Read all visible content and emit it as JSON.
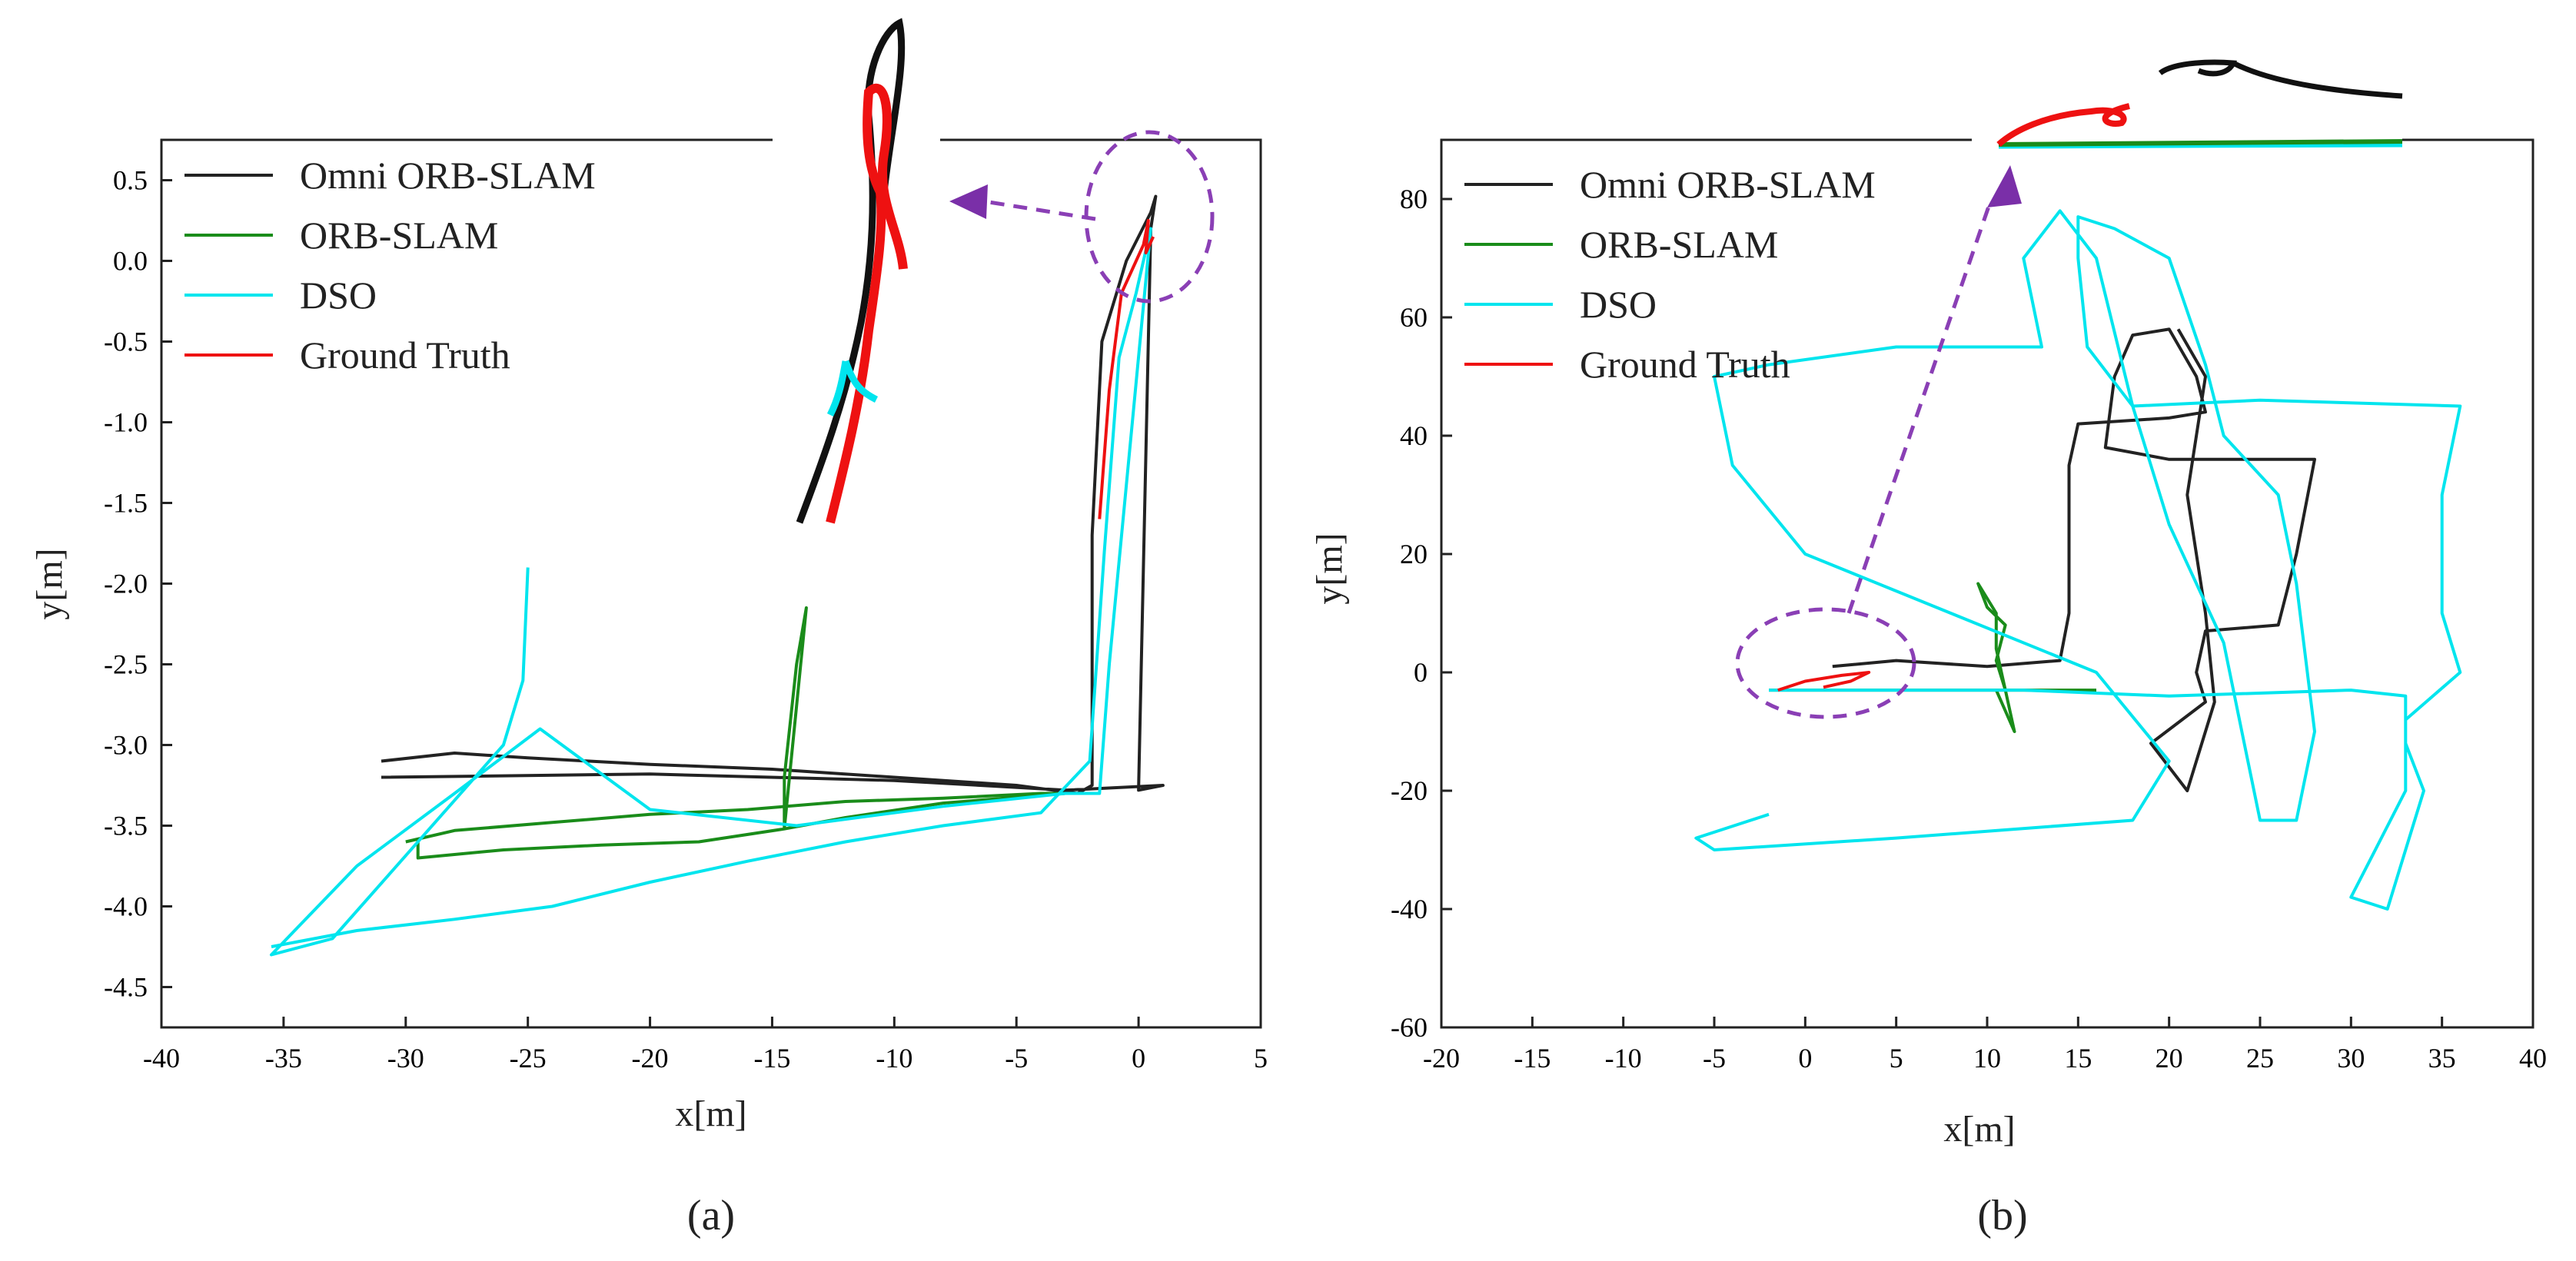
{
  "chart_data": [
    {
      "panel": "a",
      "type": "line",
      "caption": "(a)",
      "xlabel": "x[m]",
      "ylabel": "y[m]",
      "xlim": [
        -40,
        5
      ],
      "ylim": [
        -4.75,
        0.75
      ],
      "xticks": [
        "-40",
        "-35",
        "-30",
        "-25",
        "-20",
        "-15",
        "-10",
        "-5",
        "0",
        "5"
      ],
      "yticks": [
        "0.5",
        "0.0",
        "-0.5",
        "-1.0",
        "-1.5",
        "-2.0",
        "-2.5",
        "-3.0",
        "-3.5",
        "-4.0",
        "-4.5"
      ],
      "legend": [
        "Omni ORB-SLAM",
        "ORB-SLAM",
        "DSO",
        "Ground Truth"
      ],
      "series": [
        {
          "name": "Omni ORB-SLAM",
          "color": "#222222",
          "points": [
            [
              -31,
              -3.1
            ],
            [
              -28,
              -3.05
            ],
            [
              -25,
              -3.08
            ],
            [
              -20,
              -3.12
            ],
            [
              -15,
              -3.15
            ],
            [
              -10,
              -3.2
            ],
            [
              -5,
              -3.25
            ],
            [
              -2.5,
              -3.3
            ],
            [
              -1.9,
              -3.25
            ],
            [
              -1.9,
              -1.7
            ],
            [
              -1.5,
              -0.5
            ],
            [
              -0.5,
              0.0
            ],
            [
              0.5,
              0.3
            ],
            [
              0.7,
              0.4
            ],
            [
              0.5,
              0.2
            ],
            [
              0.0,
              -3.28
            ],
            [
              1,
              -3.25
            ],
            [
              -3,
              -3.28
            ],
            [
              -10,
              -3.22
            ],
            [
              -20,
              -3.18
            ],
            [
              -31,
              -3.2
            ]
          ]
        },
        {
          "name": "ORB-SLAM",
          "color": "#1a8c1a",
          "points": [
            [
              -30,
              -3.6
            ],
            [
              -28,
              -3.53
            ],
            [
              -24,
              -3.48
            ],
            [
              -20,
              -3.43
            ],
            [
              -16,
              -3.4
            ],
            [
              -12,
              -3.35
            ],
            [
              -8,
              -3.33
            ],
            [
              -4,
              -3.3
            ],
            [
              -3,
              -3.3
            ],
            [
              -8,
              -3.36
            ],
            [
              -12,
              -3.45
            ],
            [
              -14.5,
              -3.52
            ],
            [
              -14.5,
              -3.2
            ],
            [
              -14,
              -2.5
            ],
            [
              -13.6,
              -2.15
            ],
            [
              -14.5,
              -3.52
            ],
            [
              -18,
              -3.6
            ],
            [
              -22,
              -3.62
            ],
            [
              -26,
              -3.65
            ],
            [
              -29.5,
              -3.7
            ],
            [
              -29.5,
              -3.58
            ]
          ]
        },
        {
          "name": "DSO",
          "color": "#00e5ee",
          "points": [
            [
              -35.5,
              -4.25
            ],
            [
              -32,
              -4.15
            ],
            [
              -28,
              -4.08
            ],
            [
              -24,
              -4.0
            ],
            [
              -20,
              -3.85
            ],
            [
              -16,
              -3.72
            ],
            [
              -12,
              -3.6
            ],
            [
              -8,
              -3.5
            ],
            [
              -4,
              -3.42
            ],
            [
              -2,
              -3.1
            ],
            [
              -1.4,
              -1.8
            ],
            [
              -0.8,
              -0.6
            ],
            [
              -0.1,
              -0.2
            ],
            [
              0.5,
              0.2
            ],
            [
              -1.2,
              -2.5
            ],
            [
              -1.6,
              -3.3
            ],
            [
              -3,
              -3.3
            ],
            [
              -8,
              -3.38
            ],
            [
              -14,
              -3.5
            ],
            [
              -20,
              -3.4
            ],
            [
              -24.5,
              -2.9
            ],
            [
              -28,
              -3.3
            ],
            [
              -32,
              -3.75
            ],
            [
              -35.5,
              -4.3
            ],
            [
              -33,
              -4.2
            ],
            [
              -26,
              -3.0
            ],
            [
              -25.2,
              -2.6
            ],
            [
              -25.0,
              -1.9
            ]
          ]
        },
        {
          "name": "Ground Truth",
          "color": "#ee1111",
          "points": [
            [
              -1.6,
              -1.6
            ],
            [
              -1.2,
              -0.8
            ],
            [
              -0.7,
              -0.2
            ],
            [
              0.2,
              0.1
            ],
            [
              0.4,
              0.25
            ],
            [
              0.3,
              0.05
            ],
            [
              0.6,
              0.15
            ]
          ]
        }
      ]
    },
    {
      "panel": "b",
      "type": "line",
      "caption": "(b)",
      "xlabel": "x[m]",
      "ylabel": "y[m]",
      "xlim": [
        -20,
        40
      ],
      "ylim": [
        -60,
        90
      ],
      "xticks": [
        "-20",
        "-15",
        "-10",
        "-5",
        "0",
        "5",
        "10",
        "15",
        "20",
        "25",
        "30",
        "35",
        "40"
      ],
      "yticks": [
        "80",
        "60",
        "40",
        "20",
        "0",
        "-20",
        "-40",
        "-60"
      ],
      "legend": [
        "Omni ORB-SLAM",
        "ORB-SLAM",
        "DSO",
        "Ground Truth"
      ],
      "series": [
        {
          "name": "Omni ORB-SLAM",
          "color": "#222222",
          "points": [
            [
              1.5,
              1
            ],
            [
              5,
              2
            ],
            [
              10,
              1
            ],
            [
              14,
              2
            ],
            [
              14.5,
              10
            ],
            [
              14.5,
              35
            ],
            [
              15,
              42
            ],
            [
              20,
              43
            ],
            [
              22,
              44
            ],
            [
              21.5,
              50
            ],
            [
              20,
              58
            ],
            [
              18,
              57
            ],
            [
              17,
              50
            ],
            [
              16.5,
              38
            ],
            [
              20,
              36
            ],
            [
              28,
              36
            ],
            [
              27,
              20
            ],
            [
              26,
              8
            ],
            [
              22,
              7
            ],
            [
              21.5,
              0
            ],
            [
              22,
              -5
            ],
            [
              19,
              -12
            ],
            [
              21,
              -20
            ],
            [
              22.5,
              -5
            ],
            [
              22,
              10
            ],
            [
              21,
              30
            ],
            [
              22,
              50
            ],
            [
              20.5,
              58
            ]
          ]
        },
        {
          "name": "ORB-SLAM",
          "color": "#1a8c1a",
          "points": [
            [
              -2,
              -3
            ],
            [
              3,
              -3
            ],
            [
              8,
              -3
            ],
            [
              11,
              -3
            ],
            [
              10.5,
              2
            ],
            [
              11,
              8
            ],
            [
              10,
              11
            ],
            [
              9.5,
              15
            ],
            [
              10.5,
              10
            ],
            [
              10.5,
              4
            ],
            [
              11,
              -3
            ],
            [
              11.5,
              -10
            ],
            [
              10.5,
              -3
            ],
            [
              14,
              -3
            ],
            [
              16,
              -3
            ]
          ]
        },
        {
          "name": "DSO",
          "color": "#00e5ee",
          "points": [
            [
              -2,
              -3
            ],
            [
              5,
              -3
            ],
            [
              12,
              -3
            ],
            [
              20,
              -4
            ],
            [
              30,
              -3
            ],
            [
              33,
              -4
            ],
            [
              33,
              -12
            ],
            [
              34,
              -20
            ],
            [
              33,
              -30
            ],
            [
              32,
              -40
            ],
            [
              30,
              -38
            ],
            [
              31,
              -32
            ],
            [
              33,
              -20
            ],
            [
              33,
              -8
            ],
            [
              36,
              0
            ],
            [
              35,
              10
            ],
            [
              35,
              30
            ],
            [
              36,
              45
            ],
            [
              25,
              46
            ],
            [
              18,
              45
            ],
            [
              15.5,
              55
            ],
            [
              15,
              70
            ],
            [
              15,
              77
            ],
            [
              17,
              75
            ],
            [
              20,
              70
            ],
            [
              22,
              52
            ],
            [
              23,
              40
            ],
            [
              26,
              30
            ],
            [
              27,
              15
            ],
            [
              28,
              -10
            ],
            [
              27,
              -25
            ],
            [
              25,
              -25
            ],
            [
              24,
              -10
            ],
            [
              23,
              5
            ],
            [
              20,
              25
            ],
            [
              18,
              45
            ],
            [
              16,
              70
            ],
            [
              14,
              78
            ],
            [
              12,
              70
            ],
            [
              13,
              55
            ],
            [
              5,
              55
            ],
            [
              -2,
              52
            ],
            [
              -5,
              50
            ],
            [
              -4,
              35
            ],
            [
              0,
              20
            ],
            [
              8,
              10
            ],
            [
              16,
              0
            ],
            [
              20,
              -15
            ],
            [
              18,
              -25
            ],
            [
              5,
              -28
            ],
            [
              -5,
              -30
            ],
            [
              -6,
              -28
            ],
            [
              -3,
              -25
            ],
            [
              -2,
              -24
            ]
          ]
        },
        {
          "name": "Ground Truth",
          "color": "#ee1111",
          "points": [
            [
              -1.5,
              -3
            ],
            [
              0,
              -1.5
            ],
            [
              2,
              -0.5
            ],
            [
              3.5,
              0
            ],
            [
              2.5,
              -1.5
            ],
            [
              1,
              -2.5
            ]
          ]
        }
      ]
    }
  ]
}
